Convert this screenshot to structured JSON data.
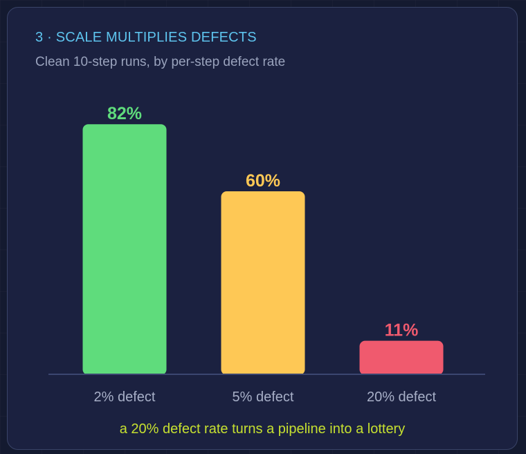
{
  "header": {
    "title": "3 · SCALE MULTIPLIES DEFECTS",
    "subtitle": "Clean 10-step runs, by per-step defect rate"
  },
  "footer": {
    "caption": "a 20% defect rate turns a pipeline into a lottery"
  },
  "chart_data": {
    "type": "bar",
    "title": "3 · SCALE MULTIPLIES DEFECTS",
    "subtitle": "Clean 10-step runs, by per-step defect rate",
    "categories": [
      "2% defect",
      "5% defect",
      "20% defect"
    ],
    "values": [
      82,
      60,
      11
    ],
    "value_labels": [
      "82%",
      "60%",
      "11%"
    ],
    "colors": [
      "#5fdc7c",
      "#fec855",
      "#f05a6e"
    ],
    "ylim": [
      0,
      100
    ],
    "grid": false,
    "legend": "none"
  }
}
